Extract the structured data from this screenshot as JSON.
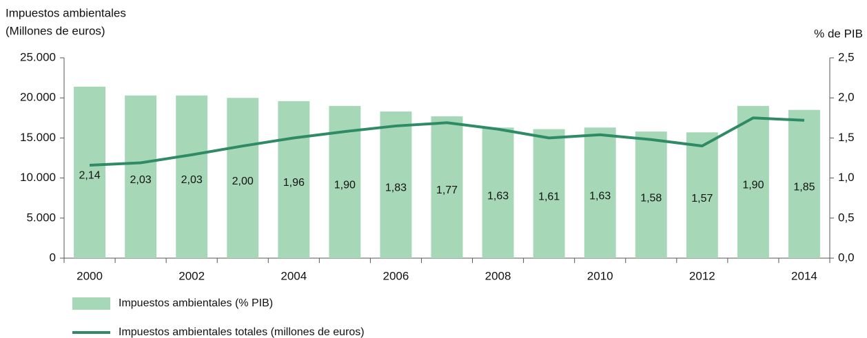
{
  "chart_data": {
    "type": "bar_line",
    "ylabel": [
      "Impuestos ambientales",
      "(Millones de euros)"
    ],
    "y2label": "% de PIB",
    "categories": [
      "2000",
      null,
      "2002",
      null,
      "2004",
      null,
      "2006",
      null,
      "2008",
      null,
      "2010",
      null,
      "2012",
      null,
      "2014"
    ],
    "series": [
      {
        "name": "Impuestos ambientales (% PIB)",
        "type": "bar",
        "axis": "y2",
        "color": "#a6d8b8",
        "values": [
          2.14,
          2.03,
          2.03,
          2.0,
          1.96,
          1.9,
          1.83,
          1.77,
          1.63,
          1.61,
          1.63,
          1.58,
          1.57,
          1.9,
          1.85
        ],
        "value_labels": [
          "2,14",
          "2,03",
          "2,03",
          "2,00",
          "1,96",
          "1,90",
          "1,83",
          "1,77",
          "1,63",
          "1,61",
          "1,63",
          "1,58",
          "1,57",
          "1,90",
          "1,85"
        ]
      },
      {
        "name": "Impuestos ambientales totales (millones de euros)",
        "type": "line",
        "axis": "y",
        "color": "#2e8b66",
        "values": [
          11600,
          11900,
          12900,
          14000,
          15000,
          15800,
          16500,
          16900,
          16100,
          15000,
          15400,
          14800,
          14000,
          17500,
          17200
        ]
      }
    ],
    "ylim": [
      0,
      25000
    ],
    "yticks": [
      0,
      {
        "value": 5000,
        "label": "5.000"
      },
      {
        "value": 10000,
        "label": "10.000"
      },
      {
        "value": 15000,
        "label": "15.000"
      },
      {
        "value": 20000,
        "label": "20.000"
      },
      {
        "value": 25000,
        "label": "25.000"
      }
    ],
    "y2lim": [
      0,
      2.5
    ],
    "y2ticks": [
      {
        "value": 0,
        "label": "0,0"
      },
      {
        "value": 0.5,
        "label": "0,5"
      },
      {
        "value": 1,
        "label": "1,0"
      },
      {
        "value": 1.5,
        "label": "1,5"
      },
      {
        "value": 2,
        "label": "2,0"
      },
      {
        "value": 2.5,
        "label": "2,5"
      }
    ]
  }
}
